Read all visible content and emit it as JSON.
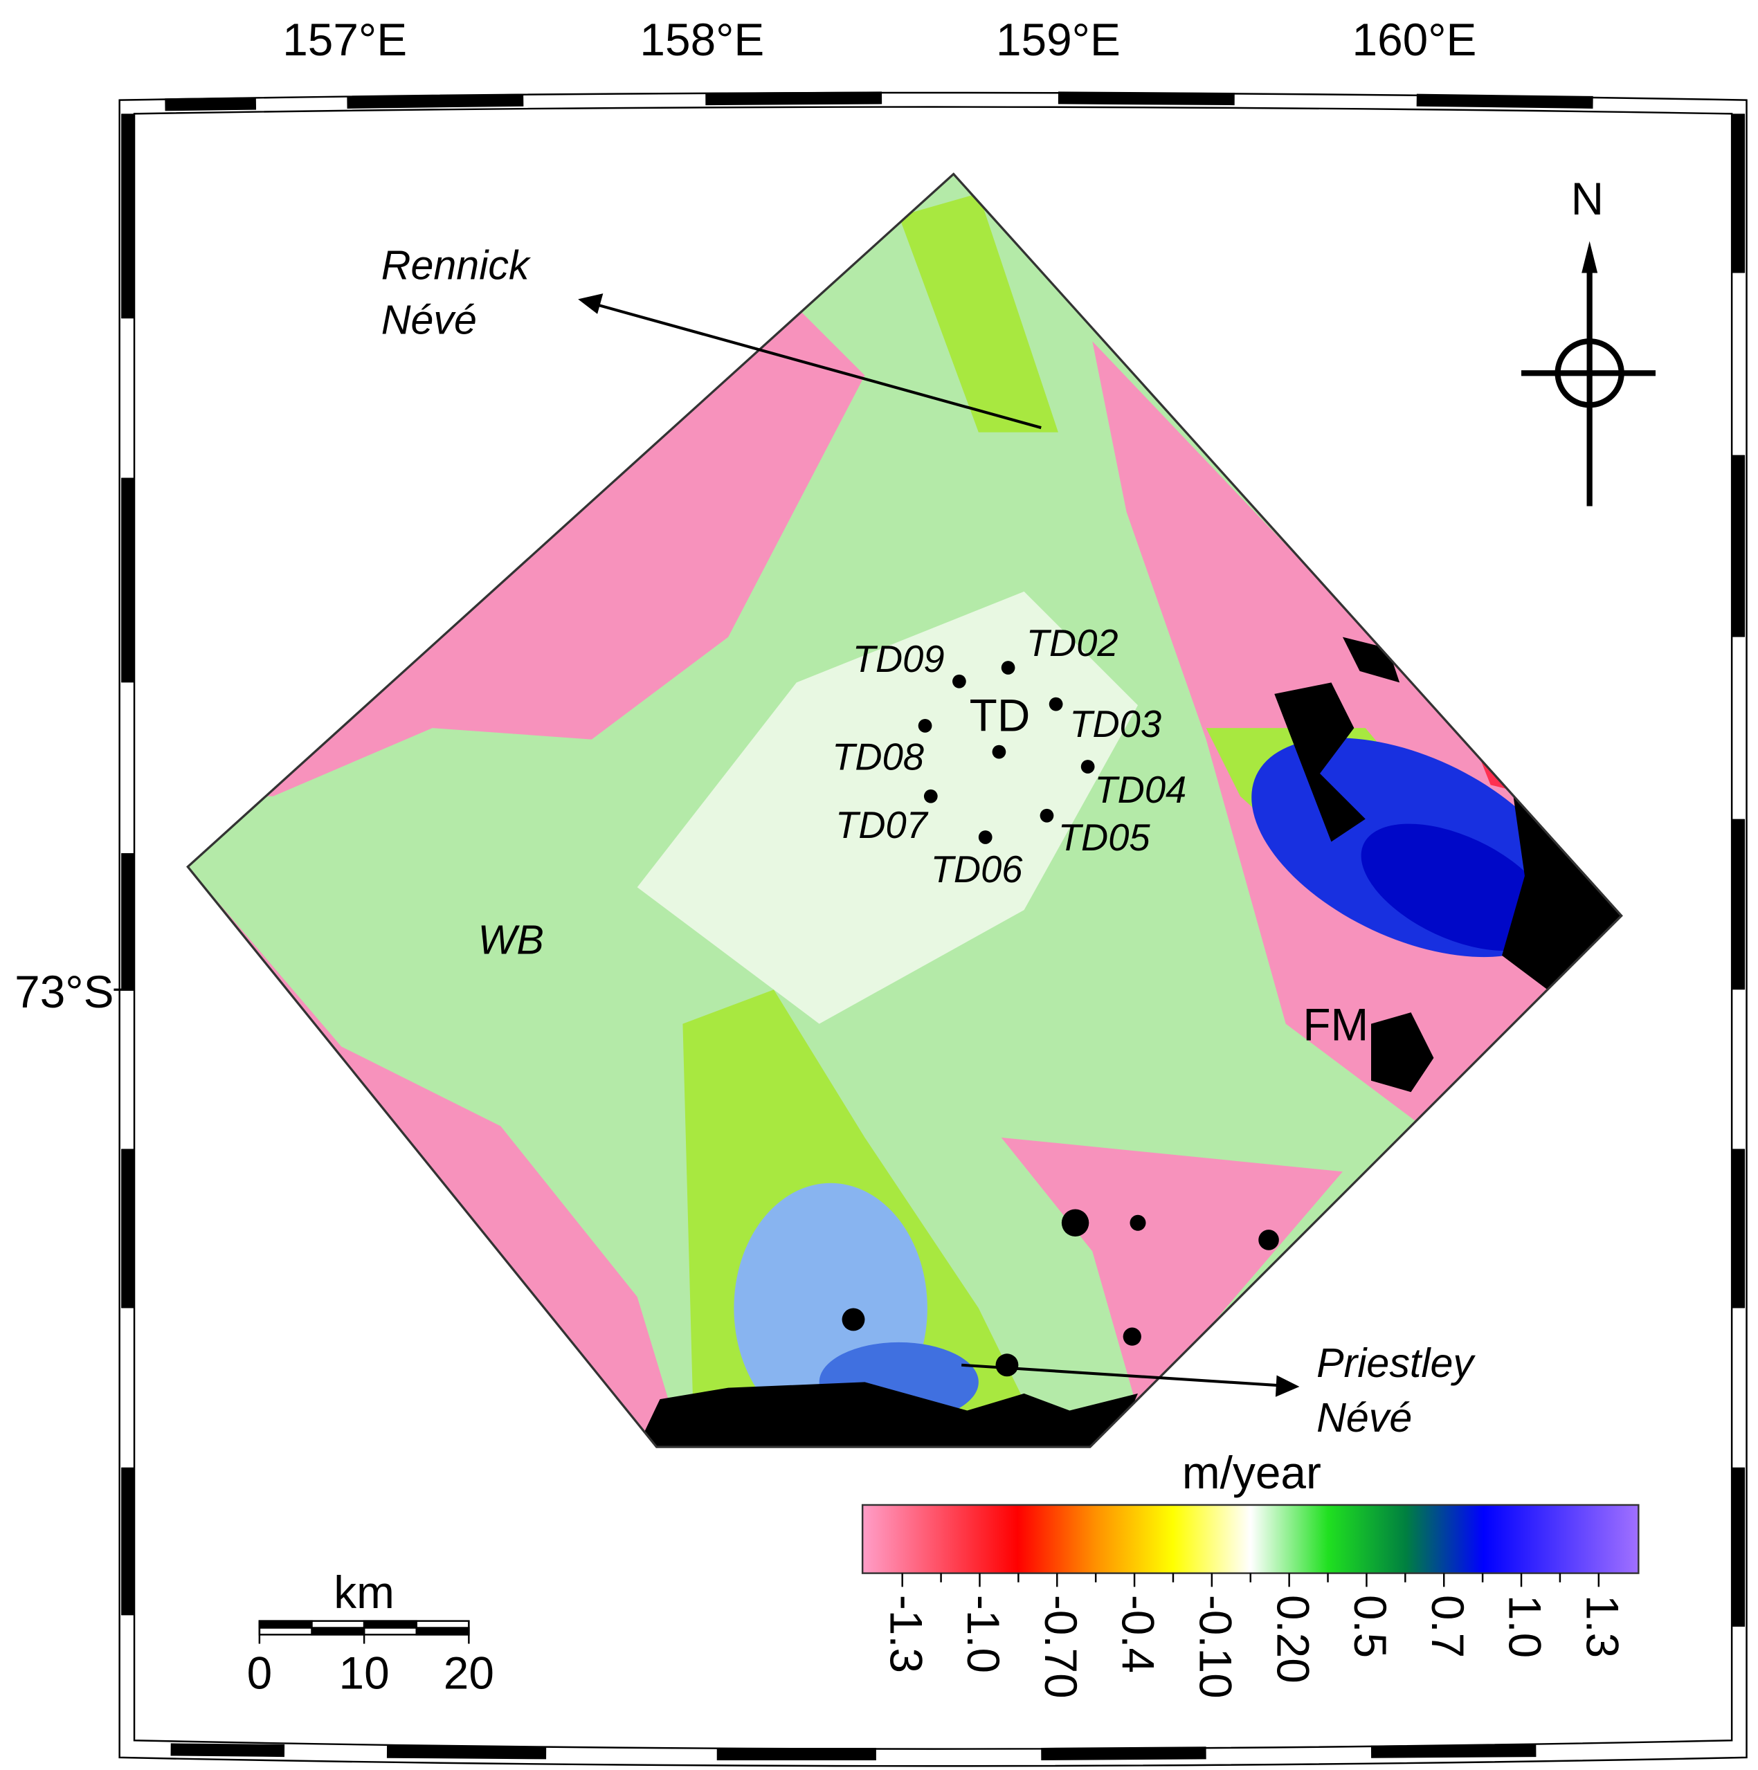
{
  "graticule": {
    "longitudes": [
      "157°E",
      "158°E",
      "159°E",
      "160°E"
    ],
    "latitude": "73°S"
  },
  "places": [
    {
      "lines": [
        "Rennick",
        "Névé"
      ]
    },
    {
      "lines": [
        "Priestley",
        "Névé"
      ]
    },
    {
      "lines": [
        "WB"
      ]
    },
    {
      "lines": [
        "FM"
      ]
    },
    {
      "lines": [
        "TD"
      ]
    }
  ],
  "stations": [
    "TD02",
    "TD03",
    "TD04",
    "TD05",
    "TD06",
    "TD07",
    "TD08",
    "TD09"
  ],
  "colorbar": {
    "title": "m/year",
    "ticks": [
      "-1.3",
      "-1.0",
      "-0.70",
      "-0.4",
      "-0.10",
      "0.20",
      "0.5",
      "0.7",
      "1.0",
      "1.3"
    ]
  },
  "scale_bar": {
    "unit": "km",
    "ticks": [
      "0",
      "10",
      "20"
    ]
  },
  "north": "N"
}
